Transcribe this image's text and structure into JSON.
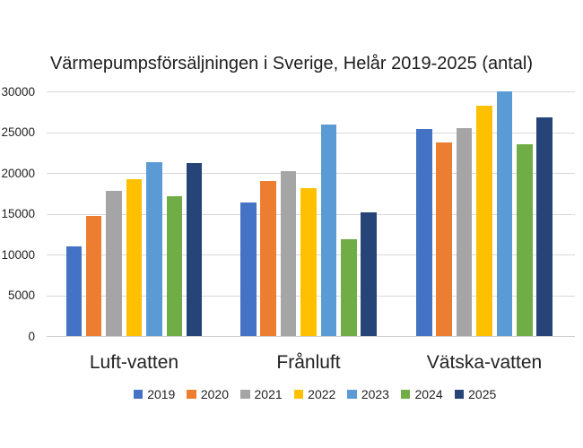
{
  "title": "Värmepumpsförsäljningen i Sverige, Helår 2019-2025 (antal)",
  "chart_data": {
    "type": "bar",
    "title": "Värmepumpsförsäljningen i Sverige, Helår 2019-2025 (antal)",
    "categories": [
      "Luft-vatten",
      "Frånluft",
      "Vätska-vatten"
    ],
    "series": [
      {
        "name": "2019",
        "color": "#4472C4",
        "values": [
          11000,
          16400,
          25400
        ]
      },
      {
        "name": "2020",
        "color": "#ED7D31",
        "values": [
          14700,
          19000,
          23700
        ]
      },
      {
        "name": "2021",
        "color": "#A5A5A5",
        "values": [
          17800,
          20200,
          25500
        ]
      },
      {
        "name": "2022",
        "color": "#FFC000",
        "values": [
          19200,
          18100,
          28200
        ]
      },
      {
        "name": "2023",
        "color": "#5B9BD5",
        "values": [
          21300,
          25900,
          30000
        ]
      },
      {
        "name": "2024",
        "color": "#70AD47",
        "values": [
          17100,
          11900,
          23500
        ]
      },
      {
        "name": "2025",
        "color": "#264478",
        "values": [
          21200,
          15200,
          26800
        ]
      }
    ],
    "xlabel": "",
    "ylabel": "",
    "ylim": [
      0,
      30000
    ],
    "y_tick_step": 5000,
    "y_tick_labels": [
      "0",
      "5000",
      "10000",
      "15000",
      "20000",
      "25000",
      "30000"
    ],
    "grid": "horizontal",
    "gridline_color": "#D9D9D9",
    "legend_position": "bottom",
    "legend_entries": [
      "2019",
      "2020",
      "2021",
      "2022",
      "2023",
      "2024",
      "2025"
    ]
  }
}
